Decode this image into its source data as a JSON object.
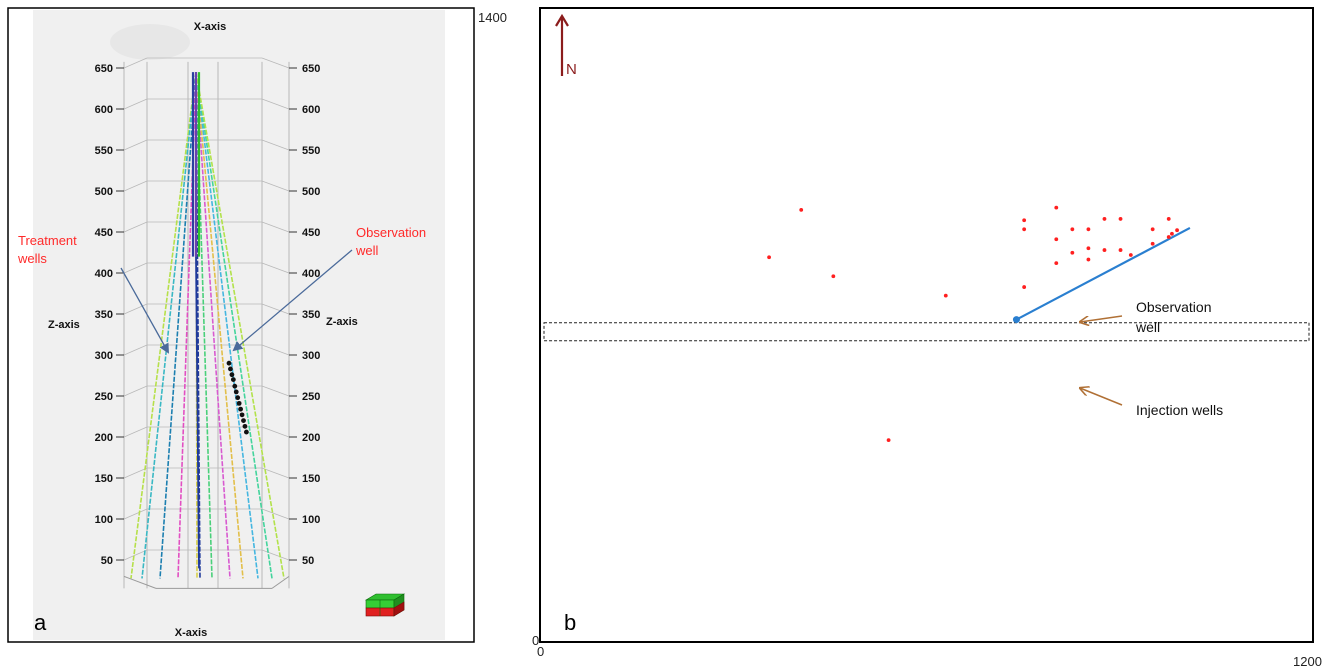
{
  "chart_data": [
    {
      "panel": "a",
      "type": "3d-line",
      "x_axis_label_top": "X-axis",
      "x_axis_label_bottom": "X-axis",
      "z_axis_label_left": "Z-axis",
      "z_axis_label_right": "Z-axis",
      "z_ticks": [
        650,
        600,
        550,
        500,
        450,
        400,
        350,
        300,
        250,
        200,
        150,
        100,
        50
      ],
      "zlim": [
        25,
        655
      ],
      "annotations": {
        "treatment": "Treatment\nwells",
        "observation": "Observation\nwell"
      },
      "observation_points_z": [
        290,
        283,
        276,
        270,
        262,
        255,
        248,
        241,
        234,
        227,
        220,
        213,
        206
      ],
      "colors": {
        "background": "#f0f0f0",
        "annotation_text": "#ff2a2a",
        "arrow": "#4a6a9a",
        "well_lines": [
          "#b6e04a",
          "#39b8c4",
          "#1c7fb0",
          "#e24fc2",
          "#d7d04a",
          "#49d07a",
          "#d85ad0",
          "#e2bf49",
          "#44b6e0",
          "#43d49c",
          "#b2e24a",
          "#1f3a9b"
        ]
      }
    },
    {
      "panel": "b",
      "type": "scatter",
      "xlim": [
        0,
        1200
      ],
      "ylim": [
        0,
        1400
      ],
      "x_labels": [
        "0",
        "1200"
      ],
      "y_labels": [
        "0",
        "1400"
      ],
      "north_label": "N",
      "annotations": {
        "observation": "Observation\nwell",
        "injection": "Injection wells"
      },
      "points": [
        [
          405,
          955
        ],
        [
          355,
          850
        ],
        [
          455,
          808
        ],
        [
          541,
          445
        ],
        [
          630,
          765
        ],
        [
          752,
          932
        ],
        [
          752,
          912
        ],
        [
          752,
          784
        ],
        [
          802,
          960
        ],
        [
          802,
          890
        ],
        [
          802,
          837
        ],
        [
          827,
          912
        ],
        [
          827,
          860
        ],
        [
          852,
          912
        ],
        [
          852,
          870
        ],
        [
          852,
          845
        ],
        [
          877,
          935
        ],
        [
          877,
          866
        ],
        [
          902,
          935
        ],
        [
          902,
          866
        ],
        [
          918,
          855
        ],
        [
          952,
          912
        ],
        [
          952,
          880
        ],
        [
          977,
          935
        ],
        [
          977,
          895
        ],
        [
          982,
          902
        ],
        [
          990,
          910
        ]
      ],
      "observation_well_line": [
        [
          740,
          712
        ],
        [
          1010,
          915
        ]
      ],
      "observation_well_head": [
        740,
        712
      ],
      "injection_band": {
        "x": [
          0,
          1200
        ],
        "y": [
          665,
          705
        ]
      },
      "colors": {
        "points": "#ff2020",
        "observation_line": "#2a7fd0",
        "north_arrow": "#8b1c1c",
        "annotation_arrow": "#b07035",
        "axis_frame": "#000000"
      }
    }
  ],
  "labels": {
    "panel_a": "a",
    "panel_b": "b"
  }
}
